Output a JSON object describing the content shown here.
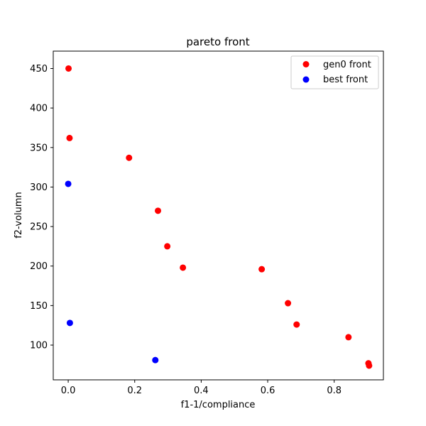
{
  "chart_data": {
    "type": "scatter",
    "title": "pareto front",
    "xlabel": "f1-1/compliance",
    "ylabel": "f2-volumn",
    "xlim": [
      -0.045,
      0.948
    ],
    "ylim": [
      56,
      472
    ],
    "xticks": [
      0.0,
      0.2,
      0.4,
      0.6,
      0.8
    ],
    "xtick_labels": [
      "0.0",
      "0.2",
      "0.4",
      "0.6",
      "0.8"
    ],
    "yticks": [
      100,
      150,
      200,
      250,
      300,
      350,
      400,
      450
    ],
    "ytick_labels": [
      "100",
      "150",
      "200",
      "250",
      "300",
      "350",
      "400",
      "450"
    ],
    "grid": false,
    "legend_position": "top-right",
    "series": [
      {
        "name": "gen0 front",
        "color": "#ff0000",
        "points": [
          [
            0.001,
            450
          ],
          [
            0.004,
            362
          ],
          [
            0.183,
            337
          ],
          [
            0.27,
            270
          ],
          [
            0.298,
            225
          ],
          [
            0.345,
            198
          ],
          [
            0.582,
            196
          ],
          [
            0.661,
            153
          ],
          [
            0.687,
            126
          ],
          [
            0.843,
            110
          ],
          [
            0.903,
            77
          ],
          [
            0.905,
            74
          ]
        ]
      },
      {
        "name": "best front",
        "color": "#0000ff",
        "points": [
          [
            0.0,
            304
          ],
          [
            0.005,
            128
          ],
          [
            0.262,
            81
          ]
        ]
      }
    ]
  }
}
